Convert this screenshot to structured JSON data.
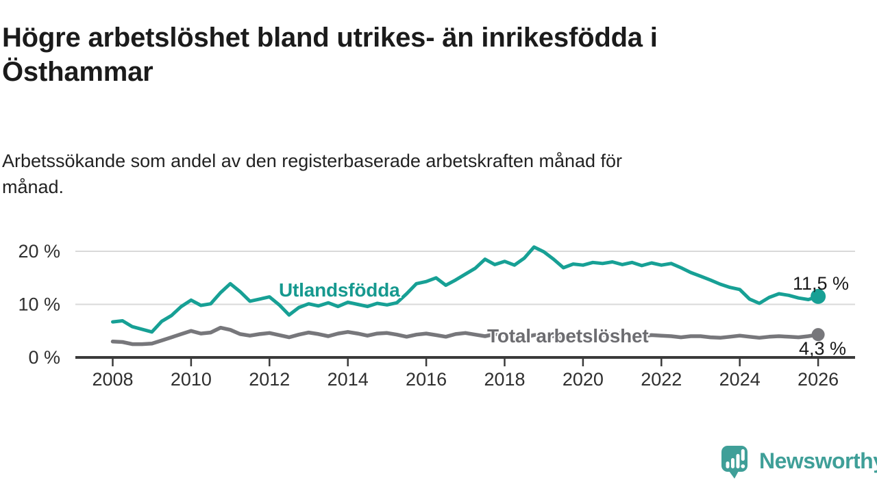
{
  "header": {
    "title": "Högre arbetslöshet bland utrikes- än inrikesfödda i\nÖsthammar",
    "subtitle": "Arbetssökande som andel av den registerbaserade arbetskraften månad för\nmånad."
  },
  "chart_data": {
    "type": "line",
    "title": "Högre arbetslöshet bland utrikes- än inrikesfödda i Östhammar",
    "subtitle": "Arbetssökande som andel av den registerbaserade arbetskraften månad för månad.",
    "x_unit": "year",
    "x_start": 2008,
    "x_step": 0.25,
    "xlim": [
      2008,
      2027
    ],
    "ylim": [
      0,
      21.5
    ],
    "grid": "horizontal",
    "x_ticks": [
      2008,
      2010,
      2012,
      2014,
      2016,
      2018,
      2020,
      2022,
      2024,
      2026
    ],
    "y_ticks": [
      {
        "value": 0,
        "label": "0 %"
      },
      {
        "value": 10,
        "label": "10 %"
      },
      {
        "value": 20,
        "label": "20 %"
      }
    ],
    "series": [
      {
        "name": "Utlandsfödda",
        "color": "#17a095",
        "label_color": "#16998f",
        "end_label": "11,5 %",
        "end_value": 11.5,
        "values": [
          6.7,
          6.9,
          5.8,
          5.3,
          4.8,
          6.8,
          7.9,
          9.6,
          10.8,
          9.8,
          10.1,
          12.2,
          13.9,
          12.4,
          10.6,
          11.0,
          11.4,
          9.9,
          8.0,
          9.4,
          10.1,
          9.7,
          10.3,
          9.6,
          10.4,
          10.0,
          9.6,
          10.2,
          9.9,
          10.3,
          12.0,
          13.9,
          14.3,
          15.0,
          13.6,
          14.6,
          15.7,
          16.8,
          18.5,
          17.5,
          18.1,
          17.4,
          18.7,
          20.8,
          19.9,
          18.5,
          16.9,
          17.6,
          17.4,
          17.9,
          17.7,
          18.0,
          17.5,
          17.9,
          17.3,
          17.8,
          17.4,
          17.7,
          16.9,
          16.0,
          15.3,
          14.6,
          13.8,
          13.2,
          12.8,
          11.0,
          10.2,
          11.3,
          12.0,
          11.7,
          11.2,
          10.9,
          11.5
        ]
      },
      {
        "name": "Total arbetslöshet",
        "color": "#77777b",
        "label_color": "#6d6d71",
        "end_label": "4,3 %",
        "end_value": 4.3,
        "values": [
          3.0,
          2.9,
          2.5,
          2.5,
          2.6,
          3.2,
          3.8,
          4.4,
          5.0,
          4.5,
          4.7,
          5.6,
          5.2,
          4.4,
          4.1,
          4.4,
          4.6,
          4.2,
          3.8,
          4.3,
          4.7,
          4.4,
          4.0,
          4.5,
          4.8,
          4.5,
          4.1,
          4.5,
          4.6,
          4.3,
          3.9,
          4.3,
          4.5,
          4.2,
          3.9,
          4.4,
          4.6,
          4.3,
          4.0,
          4.4,
          4.3,
          4.1,
          3.8,
          4.2,
          4.3,
          4.0,
          3.8,
          4.3,
          4.5,
          4.4,
          4.2,
          4.5,
          4.5,
          4.2,
          4.0,
          4.2,
          4.1,
          4.0,
          3.8,
          4.0,
          4.0,
          3.8,
          3.7,
          3.9,
          4.1,
          3.9,
          3.7,
          3.9,
          4.0,
          3.9,
          3.8,
          4.0,
          4.3
        ]
      }
    ],
    "colors": {
      "axis": "#3a3a3a",
      "grid": "#d9d9d9",
      "tick_text": "#2f2f2f"
    }
  },
  "branding": {
    "brand": "Newsworthy",
    "logo_icon": "newsworthy-speech-bubble-chart-icon",
    "color": "#3f9f98"
  }
}
